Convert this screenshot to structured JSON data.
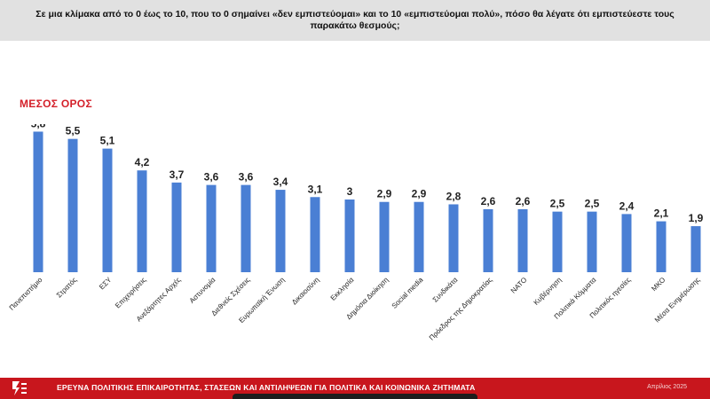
{
  "header": {
    "question": "Σε μια κλίμακα από το 0 έως το 10, που το 0 σημαίνει «δεν εμπιστεύομαι» και το 10 «εμπιστεύομαι πολύ», πόσο θα λέγατε ότι εμπιστεύεστε τους παρακάτω θεσμούς;"
  },
  "section_title": "ΜΕΣΟΣ ΟΡΟΣ",
  "footer": {
    "survey_title": "ΕΡΕΥΝΑ ΠΟΛΙΤΙΚΗΣ ΕΠΙΚΑΙΡΟΤΗΤΑΣ, ΣΤΑΣΕΩΝ ΚΑΙ ΑΝΤΙΛΗΨΕΩΝ ΓΙΑ ΠΟΛΙΤΙΚΑ ΚΑΙ ΚΟΙΝΩΝΙΚΑ ΖΗΤΗΜΑΤΑ",
    "date": "Απρίλιος 2025",
    "logo_icon": "brand-logo-icon"
  },
  "colors": {
    "bar": "#4a7fd4",
    "accent": "#d4202a",
    "footer": "#c8161d"
  },
  "chart_data": {
    "type": "bar",
    "title": "ΜΕΣΟΣ ΟΡΟΣ",
    "categories": [
      "Πανεπιστήμιο",
      "Στρατός",
      "ΕΣΥ",
      "Επιχειρήσεις",
      "Ανεξάρτητες Αρχές",
      "Αστυνομία",
      "Διεθνείς Σχέσεις",
      "Ευρωπαϊκή Ένωση",
      "Δικαιοσύνη",
      "Εκκλησία",
      "Δημόσια Διοίκηση",
      "Social media",
      "Συνδικάτα",
      "Πρόεδρος της Δημοκρατίας",
      "ΝΑΤΟ",
      "Κυβέρνηση",
      "Πολιτικά Κόμματα",
      "Πολιτικός ηγεσίες",
      "ΜΚΟ",
      "Μέσα Ενημέρωσης"
    ],
    "values": [
      5.8,
      5.5,
      5.1,
      4.2,
      3.7,
      3.6,
      3.6,
      3.4,
      3.1,
      3.0,
      2.9,
      2.9,
      2.8,
      2.6,
      2.6,
      2.5,
      2.5,
      2.4,
      2.1,
      1.9
    ],
    "value_labels": [
      "5,8",
      "5,5",
      "5,1",
      "4,2",
      "3,7",
      "3,6",
      "3,6",
      "3,4",
      "3,1",
      "3",
      "2,9",
      "2,9",
      "2,8",
      "2,6",
      "2,6",
      "2,5",
      "2,5",
      "2,4",
      "2,1",
      "1,9"
    ],
    "ylim": [
      0,
      7.5
    ],
    "grid": false,
    "legend": "none"
  }
}
